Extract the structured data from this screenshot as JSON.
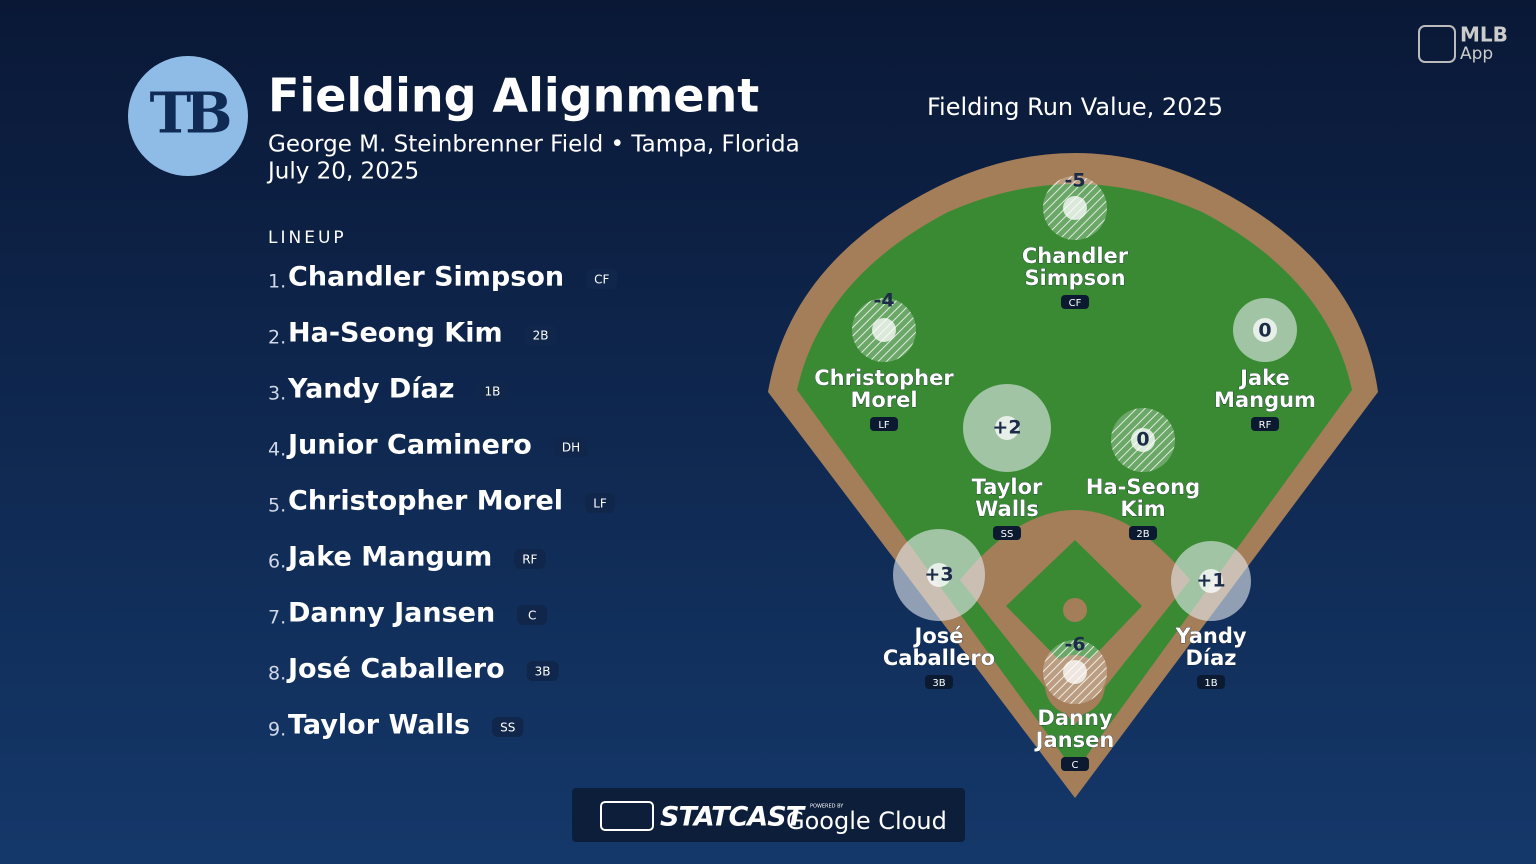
{
  "header": {
    "logo": "TB",
    "title": "Fielding Alignment",
    "venue": "George M. Steinbrenner Field • Tampa, Florida",
    "date": "July 20, 2025"
  },
  "branding": {
    "app": [
      "MLB",
      "App"
    ]
  },
  "lineup": {
    "heading": "LINEUP",
    "players": [
      {
        "order": "1.",
        "name": "Chandler Simpson",
        "position": "CF"
      },
      {
        "order": "2.",
        "name": "Ha-Seong Kim",
        "position": "2B"
      },
      {
        "order": "3.",
        "name": "Yandy Díaz",
        "position": "1B"
      },
      {
        "order": "4.",
        "name": "Junior Caminero",
        "position": "DH"
      },
      {
        "order": "5.",
        "name": "Christopher Morel",
        "position": "LF"
      },
      {
        "order": "6.",
        "name": "Jake Mangum",
        "position": "RF"
      },
      {
        "order": "7.",
        "name": "Danny Jansen",
        "position": "C"
      },
      {
        "order": "8.",
        "name": "José Caballero",
        "position": "3B"
      },
      {
        "order": "9.",
        "name": "Taylor Walls",
        "position": "SS"
      }
    ]
  },
  "field": {
    "title": "Fielding Run Value, 2025",
    "fielders": [
      {
        "name": [
          "Chandler",
          "Simpson"
        ],
        "position": "CF",
        "run_value": "-5"
      },
      {
        "name": [
          "Christopher",
          "Morel"
        ],
        "position": "LF",
        "run_value": "-4"
      },
      {
        "name": [
          "Jake",
          "Mangum"
        ],
        "position": "RF",
        "run_value": "0"
      },
      {
        "name": [
          "Taylor",
          "Walls"
        ],
        "position": "SS",
        "run_value": "+2"
      },
      {
        "name": [
          "Ha-Seong",
          "Kim"
        ],
        "position": "2B",
        "run_value": "0"
      },
      {
        "name": [
          "José",
          "Caballero"
        ],
        "position": "3B",
        "run_value": "+3"
      },
      {
        "name": [
          "Yandy",
          "Díaz"
        ],
        "position": "1B",
        "run_value": "+1"
      },
      {
        "name": [
          "Danny",
          "Jansen"
        ],
        "position": "C",
        "run_value": "-6"
      }
    ]
  },
  "footer": {
    "statcast": "STATCAST",
    "powered_by": "POWERED BY",
    "cloud": "Google Cloud"
  }
}
